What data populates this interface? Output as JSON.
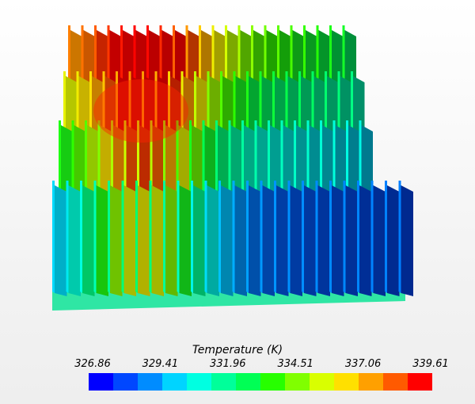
{
  "legend": {
    "title": "Temperature (K)",
    "min": 326.86,
    "max": 339.61,
    "ticks": [
      "326.86",
      "329.41",
      "331.96",
      "334.51",
      "337.06",
      "339.61"
    ],
    "colors": [
      "#0000ff",
      "#0047ff",
      "#008cff",
      "#00d4ff",
      "#00ffe1",
      "#00ff9a",
      "#00ff55",
      "#27ff00",
      "#80ff00",
      "#d9ff00",
      "#ffe000",
      "#ffa000",
      "#ff5a00",
      "#ff0000"
    ]
  }
}
